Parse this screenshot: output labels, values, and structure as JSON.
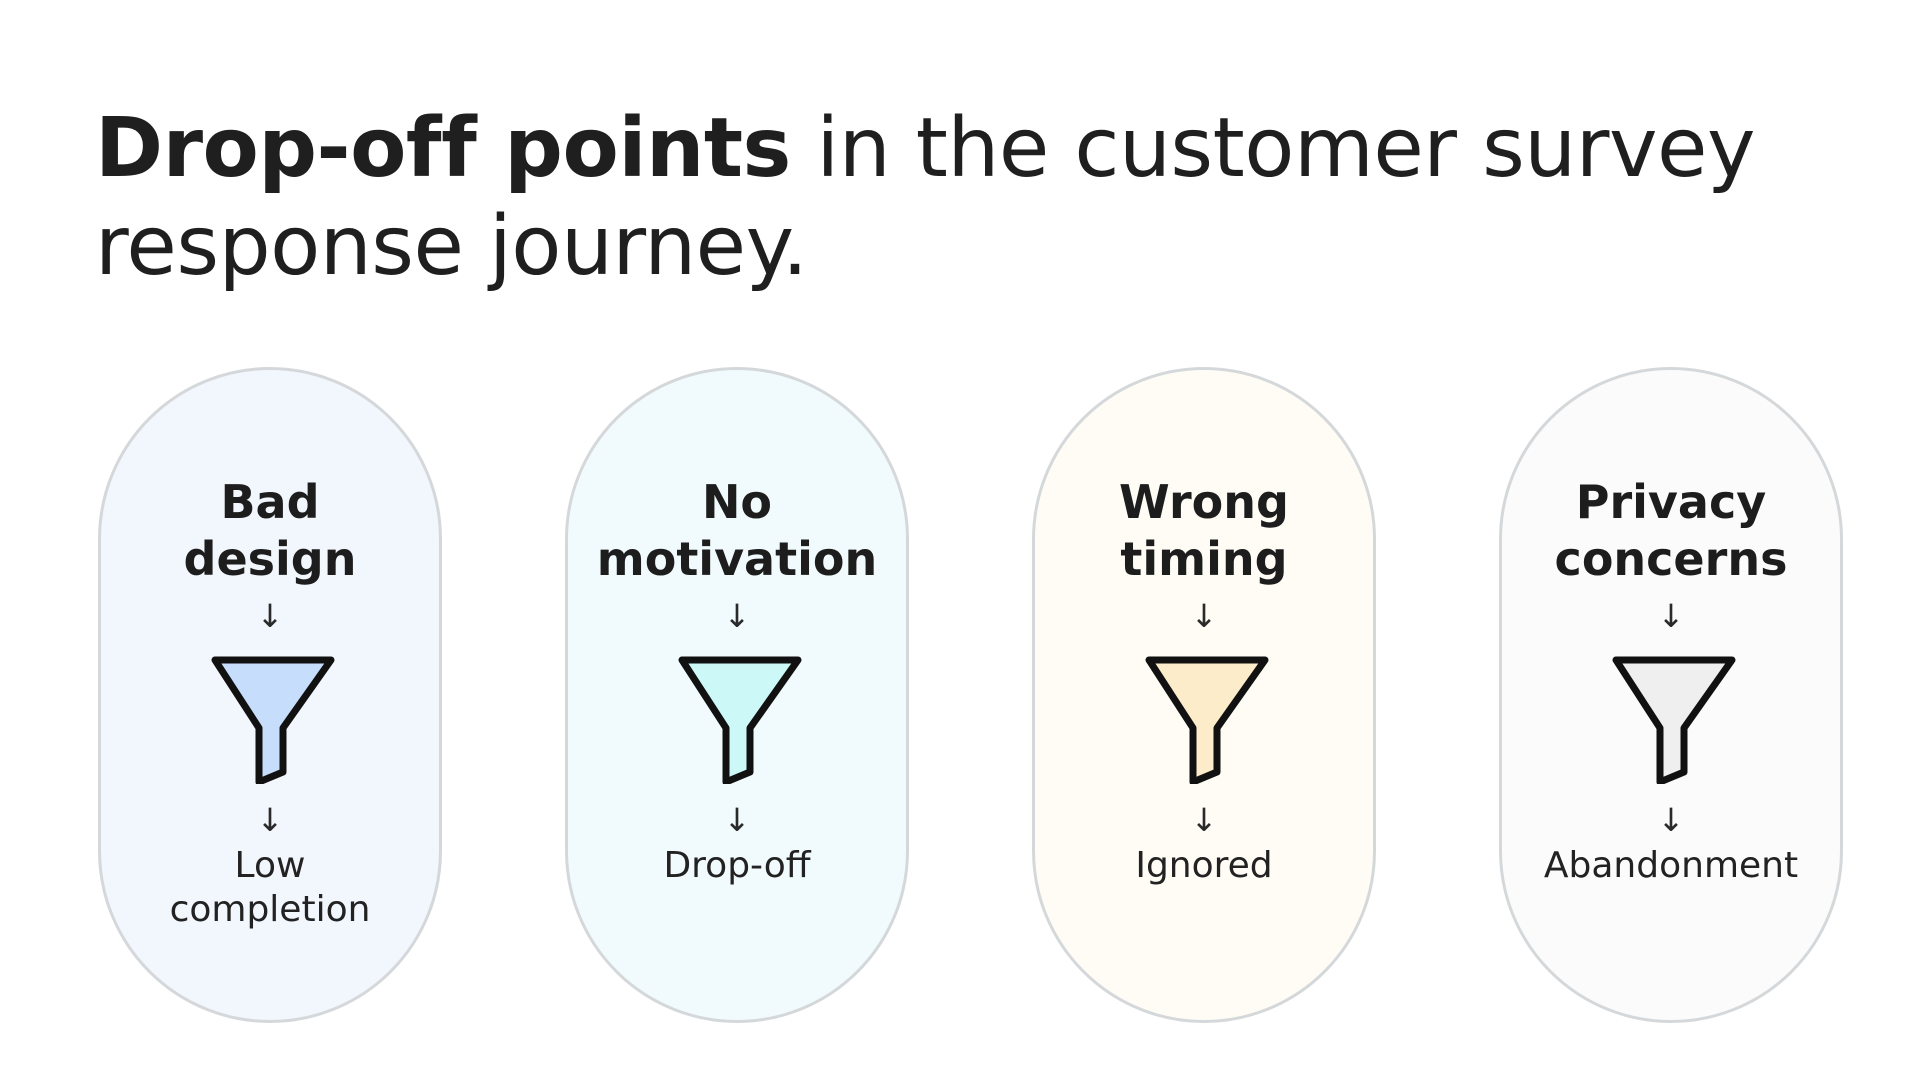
{
  "title": {
    "bold": "Drop-off points",
    "rest": "in the customer survey response journey."
  },
  "cards": [
    {
      "label_line1": "Bad",
      "label_line2": "design",
      "arrow_top": "↓",
      "arrow_bottom": "↓",
      "outcome_line1": "Low",
      "outcome_line2": "completion",
      "icon": "funnel-icon",
      "background": "#f2f6fd",
      "funnel_fill": "#c6ddfb"
    },
    {
      "label_line1": "No",
      "label_line2": "motivation",
      "arrow_top": "↓",
      "arrow_bottom": "↓",
      "outcome_line1": "Drop-off",
      "outcome_line2": "",
      "icon": "funnel-icon",
      "background": "#f1fbfd",
      "funnel_fill": "#ccf8f7"
    },
    {
      "label_line1": "Wrong",
      "label_line2": "timing",
      "arrow_top": "↓",
      "arrow_bottom": "↓",
      "outcome_line1": "Ignored",
      "outcome_line2": "",
      "icon": "funnel-icon",
      "background": "#fefcf5",
      "funnel_fill": "#fdecc9"
    },
    {
      "label_line1": "Privacy",
      "label_line2": "concerns",
      "arrow_top": "↓",
      "arrow_bottom": "↓",
      "outcome_line1": "Abandonment",
      "outcome_line2": "",
      "icon": "funnel-icon",
      "background": "#fbfbfb",
      "funnel_fill": "#efefef"
    }
  ],
  "colors": {
    "card_border": "#d5d8da",
    "funnel_stroke": "#111111",
    "text": "#1f1f1f"
  }
}
